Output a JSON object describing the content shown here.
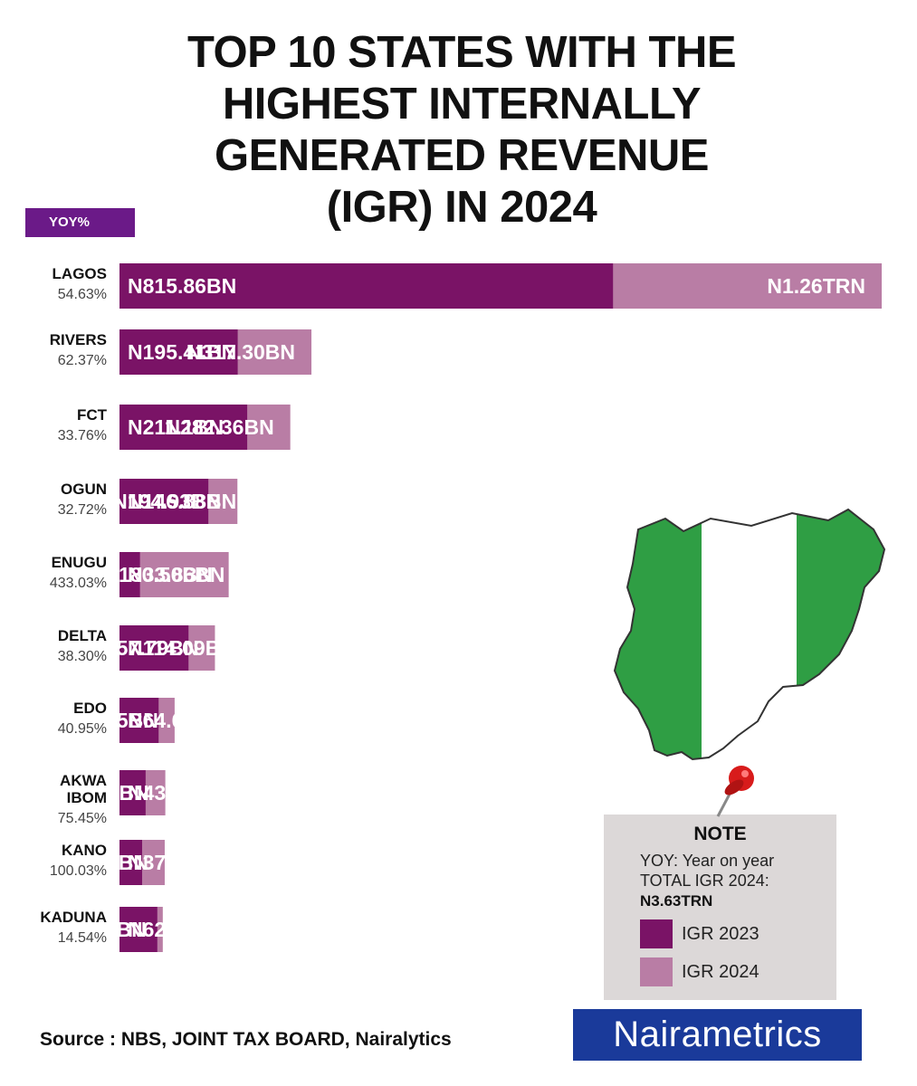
{
  "title": {
    "line1": "TOP 10 STATES WITH THE",
    "line2": "HIGHEST INTERNALLY",
    "line3": "GENERATED REVENUE",
    "line4": "(IGR) IN 2024"
  },
  "yoy_badge": "YOY%",
  "colors": {
    "igr_2023": "#7a1366",
    "igr_2024": "#b97da5",
    "badge": "#6b1a88",
    "logo_bg": "#1a3a9a",
    "flag_green": "#2f9e44"
  },
  "chart_data": {
    "type": "bar",
    "orientation": "horizontal",
    "title": "TOP 10 STATES WITH THE HIGHEST INTERNALLY GENERATED REVENUE (IGR) IN 2024",
    "unit": "N billion",
    "series": [
      {
        "name": "IGR 2023",
        "values": [
          815.86,
          195.41,
          211.1,
          146.88,
          33.86,
          114.09,
          64.67,
          43.18,
          37.38,
          62.49
        ]
      },
      {
        "name": "IGR 2024",
        "values": [
          1260,
          317.3,
          282.36,
          194.93,
          180.5,
          157.79,
          91.15,
          75.77,
          74.77,
          71.57
        ]
      }
    ],
    "states": [
      {
        "name": [
          "LAGOS"
        ],
        "yoy": "54.63%",
        "label_2023": "N815.86BN",
        "label_2024": "N1.26TRN"
      },
      {
        "name": [
          "RIVERS"
        ],
        "yoy": "62.37%",
        "label_2023": "N195.41BN",
        "label_2024": "N317.30BN"
      },
      {
        "name": [
          "FCT"
        ],
        "yoy": "33.76%",
        "label_2023": "N211.1BN",
        "label_2024": "N282.36BN"
      },
      {
        "name": [
          "OGUN"
        ],
        "yoy": "32.72%",
        "label_2023": "N146.88BN",
        "label_2024": "N194.93BN"
      },
      {
        "name": [
          "ENUGU"
        ],
        "yoy": "433.03%",
        "label_2023": "N33.86BN",
        "label_2024": "N180.50BN"
      },
      {
        "name": [
          "DELTA"
        ],
        "yoy": "38.30%",
        "label_2023": "N114.09BN",
        "label_2024": "N157.79BN"
      },
      {
        "name": [
          "EDO"
        ],
        "yoy": "40.95%",
        "label_2023": "N64.67BN",
        "label_2024": "N91.15BN"
      },
      {
        "name": [
          "AKWA",
          "IBOM"
        ],
        "yoy": "75.45%",
        "label_2023": "N43.18BN",
        "label_2024": "N75.77BN"
      },
      {
        "name": [
          "KANO"
        ],
        "yoy": "100.03%",
        "label_2023": "N37.38BN",
        "label_2024": "N74.77BN"
      },
      {
        "name": [
          "KADUNA"
        ],
        "yoy": "14.54%",
        "label_2023": "N62.49BN",
        "label_2024": "N71.57BN"
      }
    ],
    "xlim": [
      0,
      1260
    ],
    "legend": "bottom-right"
  },
  "note": {
    "title": "NOTE",
    "line1": "YOY: Year on year",
    "line2": "TOTAL IGR 2024:",
    "total": "N3.63TRN",
    "legend": [
      {
        "label": "IGR 2023"
      },
      {
        "label": "IGR 2024"
      }
    ]
  },
  "source": "Source : NBS, JOINT TAX BOARD, Nairalytics",
  "logo": "Nairametrics"
}
